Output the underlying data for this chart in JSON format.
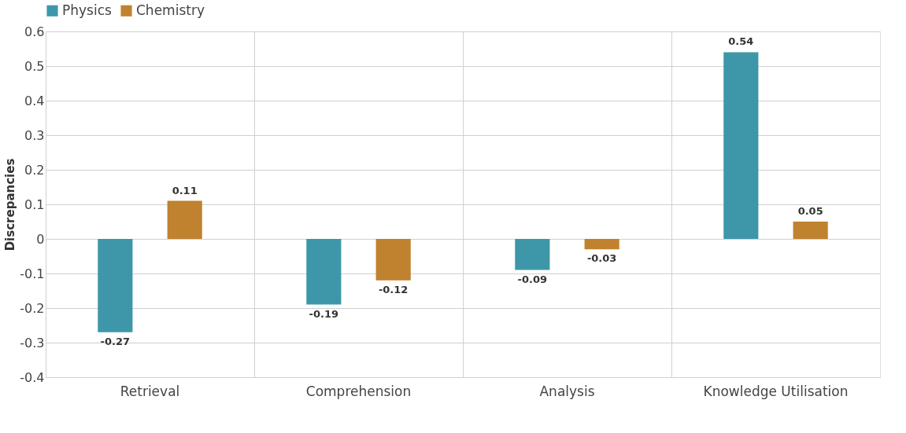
{
  "chart_data": {
    "type": "bar",
    "ylabel": "Discrepancies",
    "categories": [
      "Retrieval",
      "Comprehension",
      "Analysis",
      "Knowledge Utilisation"
    ],
    "series": [
      {
        "name": "Physics",
        "color": "#3e97a8",
        "values": [
          -0.27,
          -0.19,
          -0.09,
          0.54
        ]
      },
      {
        "name": "Chemistry",
        "color": "#c0822e",
        "values": [
          0.11,
          -0.12,
          -0.03,
          0.05
        ]
      }
    ],
    "ylim": [
      -0.4,
      0.6
    ],
    "yticks": [
      -0.4,
      -0.3,
      -0.2,
      -0.1,
      0,
      0.1,
      0.2,
      0.3,
      0.4,
      0.5,
      0.6
    ],
    "grid": true,
    "legend": "top",
    "data_labels": true
  }
}
